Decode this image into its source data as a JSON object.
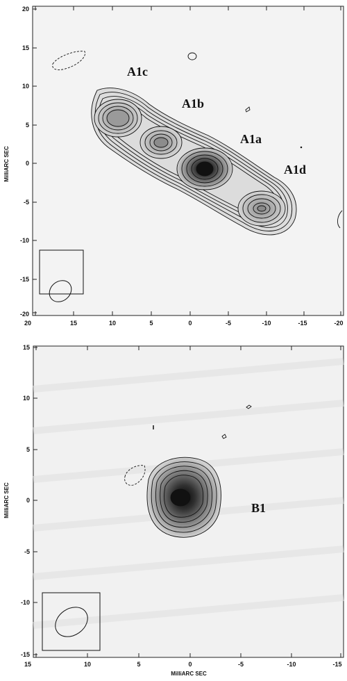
{
  "panels": [
    {
      "component_labels": [
        "A1c",
        "A1b",
        "A1a",
        "A1d"
      ],
      "x_ticks": [
        "20",
        "15",
        "10",
        "5",
        "0",
        "-5",
        "-10",
        "-15",
        "-20"
      ],
      "y_ticks": [
        "20",
        "15",
        "10",
        "5",
        "0",
        "-5",
        "-10",
        "-15",
        "-20"
      ],
      "y_axis_label": "MilliARC SEC",
      "x_range": [
        20,
        -20
      ],
      "y_range": [
        -20,
        20
      ]
    },
    {
      "component_labels": [
        "B1"
      ],
      "x_ticks": [
        "15",
        "10",
        "5",
        "0",
        "-5",
        "-10",
        "-15"
      ],
      "y_ticks": [
        "15",
        "10",
        "5",
        "0",
        "-5",
        "-10",
        "-15"
      ],
      "y_axis_label": "MilliARC SEC",
      "x_axis_label": "MilliARC SEC",
      "x_range": [
        15,
        -15
      ],
      "y_range": [
        -15,
        15
      ]
    }
  ]
}
